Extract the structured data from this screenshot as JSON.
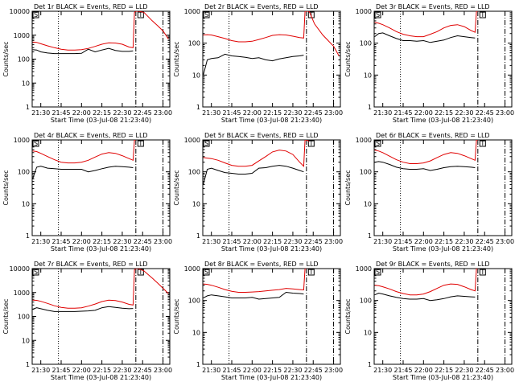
{
  "colors": {
    "events": "#000000",
    "lld": "#e00000",
    "axes": "#000000",
    "background": "#ffffff"
  },
  "common": {
    "ylabel": "Counts/sec",
    "xlabel": "Start Time (03-Jul-08 21:23:40)",
    "xticklabels": [
      "21:30",
      "21:45",
      "22:00",
      "22:15",
      "22:30",
      "22:45",
      "23:00"
    ],
    "yscale": "log",
    "time_range": [
      "21:23:40",
      "23:05:00"
    ],
    "dotted_marker": "21:43",
    "dashdot_markers": [
      "22:40",
      "23:00"
    ],
    "box_markers": [
      "S",
      "T"
    ]
  },
  "chart_data": [
    {
      "type": "line",
      "title": "Det 1r BLACK = Events, RED = LLD",
      "ylim": [
        1,
        10000
      ],
      "yticklabels": [
        "1",
        "10",
        "100",
        "1000",
        "10000"
      ],
      "x": [
        "21:24",
        "21:27",
        "21:30",
        "21:35",
        "21:40",
        "21:45",
        "21:50",
        "21:55",
        "22:00",
        "22:05",
        "22:10",
        "22:15",
        "22:20",
        "22:25",
        "22:30",
        "22:35",
        "22:38",
        "22:39",
        "22:40",
        "22:42",
        "22:46",
        "22:52",
        "22:56",
        "23:00",
        "23:04"
      ],
      "series": [
        {
          "name": "BLACK = Events",
          "values": [
            250,
            240,
            200,
            180,
            170,
            170,
            170,
            170,
            175,
            260,
            200,
            240,
            280,
            230,
            210,
            210,
            220,
            null,
            null,
            null,
            null,
            null,
            null,
            null,
            null
          ]
        },
        {
          "name": "RED = LLD",
          "values": [
            520,
            500,
            440,
            360,
            300,
            260,
            240,
            240,
            250,
            280,
            340,
            420,
            480,
            470,
            420,
            320,
            300,
            9000,
            10000,
            12000,
            9000,
            4000,
            2500,
            1500,
            700
          ]
        }
      ]
    },
    {
      "type": "line",
      "title": "Det 2r BLACK = Events, RED = LLD",
      "ylim": [
        1,
        1000
      ],
      "yticklabels": [
        "1",
        "10",
        "100",
        "1000"
      ],
      "x": [
        "21:24",
        "21:27",
        "21:30",
        "21:35",
        "21:40",
        "21:45",
        "21:50",
        "21:55",
        "22:00",
        "22:05",
        "22:10",
        "22:15",
        "22:20",
        "22:25",
        "22:30",
        "22:35",
        "22:38",
        "22:39",
        "22:40",
        "22:42",
        "22:46",
        "22:52",
        "22:56",
        "23:00",
        "23:04"
      ],
      "series": [
        {
          "name": "BLACK = Events",
          "values": [
            10,
            30,
            33,
            35,
            45,
            40,
            38,
            36,
            33,
            35,
            30,
            28,
            32,
            35,
            38,
            40,
            42,
            null,
            null,
            null,
            null,
            null,
            null,
            null,
            null
          ]
        },
        {
          "name": "RED = LLD",
          "values": [
            180,
            185,
            180,
            160,
            140,
            120,
            110,
            110,
            115,
            130,
            150,
            175,
            185,
            180,
            165,
            150,
            145,
            1000,
            1200,
            1000,
            400,
            180,
            120,
            80,
            40
          ]
        }
      ]
    },
    {
      "type": "line",
      "title": "Det 3r BLACK = Events, RED = LLD",
      "ylim": [
        1,
        1000
      ],
      "yticklabels": [
        "1",
        "10",
        "100",
        "1000"
      ],
      "x": [
        "21:24",
        "21:27",
        "21:30",
        "21:35",
        "21:40",
        "21:45",
        "21:50",
        "21:55",
        "22:00",
        "22:05",
        "22:10",
        "22:15",
        "22:20",
        "22:25",
        "22:30",
        "22:35",
        "22:38",
        "22:39",
        "22:40",
        "22:42",
        "22:46",
        "22:52",
        "22:56",
        "23:00",
        "23:04"
      ],
      "series": [
        {
          "name": "BLACK = Events",
          "values": [
            160,
            200,
            210,
            170,
            140,
            120,
            120,
            115,
            120,
            105,
            115,
            125,
            150,
            170,
            160,
            150,
            145,
            null,
            null,
            null,
            null,
            null,
            null,
            null,
            null
          ]
        },
        {
          "name": "RED = LLD",
          "values": [
            450,
            420,
            380,
            300,
            230,
            190,
            170,
            160,
            160,
            190,
            230,
            300,
            360,
            380,
            330,
            250,
            220,
            1000,
            1200,
            null,
            null,
            null,
            null,
            null,
            null
          ]
        }
      ]
    },
    {
      "type": "line",
      "title": "Det 4r BLACK = Events, RED = LLD",
      "ylim": [
        1,
        1000
      ],
      "yticklabels": [
        "1",
        "10",
        "100",
        "1000"
      ],
      "x": [
        "21:24",
        "21:27",
        "21:30",
        "21:35",
        "21:40",
        "21:45",
        "21:50",
        "21:55",
        "22:00",
        "22:05",
        "22:10",
        "22:15",
        "22:20",
        "22:25",
        "22:30",
        "22:35",
        "22:38",
        "22:39",
        "22:40",
        "22:42",
        "22:46",
        "22:52",
        "22:56",
        "23:00",
        "23:04"
      ],
      "series": [
        {
          "name": "BLACK = Events",
          "values": [
            60,
            140,
            150,
            130,
            125,
            120,
            120,
            120,
            120,
            100,
            110,
            125,
            140,
            150,
            145,
            140,
            135,
            null,
            null,
            null,
            null,
            null,
            null,
            null,
            null
          ]
        },
        {
          "name": "RED = LLD",
          "values": [
            450,
            430,
            380,
            300,
            240,
            200,
            190,
            190,
            200,
            230,
            290,
            360,
            400,
            380,
            320,
            260,
            230,
            1000,
            1200,
            null,
            null,
            null,
            null,
            null,
            null
          ]
        }
      ]
    },
    {
      "type": "line",
      "title": "Det 5r BLACK = Events, RED = LLD",
      "ylim": [
        1,
        1000
      ],
      "yticklabels": [
        "1",
        "10",
        "100",
        "1000"
      ],
      "x": [
        "21:24",
        "21:27",
        "21:30",
        "21:35",
        "21:40",
        "21:45",
        "21:50",
        "21:55",
        "22:00",
        "22:05",
        "22:10",
        "22:15",
        "22:20",
        "22:25",
        "22:30",
        "22:35",
        "22:38",
        "22:39",
        "22:40",
        "22:42",
        "22:46",
        "22:52",
        "22:56",
        "23:00",
        "23:04"
      ],
      "series": [
        {
          "name": "BLACK = Events",
          "values": [
            40,
            120,
            130,
            110,
            95,
            90,
            85,
            85,
            90,
            130,
            135,
            150,
            160,
            150,
            130,
            110,
            100,
            null,
            null,
            null,
            null,
            null,
            null,
            null,
            null
          ]
        },
        {
          "name": "RED = LLD",
          "values": [
            280,
            270,
            260,
            230,
            190,
            160,
            150,
            150,
            160,
            220,
            300,
            420,
            480,
            450,
            350,
            200,
            150,
            1000,
            1100,
            900,
            null,
            null,
            null,
            null,
            null
          ]
        }
      ]
    },
    {
      "type": "line",
      "title": "Det 6r BLACK = Events, RED = LLD",
      "ylim": [
        1,
        1000
      ],
      "yticklabels": [
        "1",
        "10",
        "100",
        "1000"
      ],
      "x": [
        "21:24",
        "21:27",
        "21:30",
        "21:35",
        "21:40",
        "21:45",
        "21:50",
        "21:55",
        "22:00",
        "22:05",
        "22:10",
        "22:15",
        "22:20",
        "22:25",
        "22:30",
        "22:35",
        "22:38",
        "22:39",
        "22:40",
        "22:42",
        "22:46",
        "22:52",
        "22:56",
        "23:00",
        "23:04"
      ],
      "series": [
        {
          "name": "BLACK = Events",
          "values": [
            200,
            210,
            200,
            170,
            140,
            125,
            120,
            120,
            125,
            110,
            120,
            135,
            145,
            150,
            145,
            140,
            135,
            null,
            null,
            null,
            null,
            null,
            null,
            null,
            null
          ]
        },
        {
          "name": "RED = LLD",
          "values": [
            480,
            450,
            400,
            310,
            240,
            200,
            180,
            180,
            190,
            220,
            280,
            350,
            400,
            380,
            320,
            260,
            230,
            1000,
            1200,
            null,
            null,
            null,
            null,
            null,
            null
          ]
        }
      ]
    },
    {
      "type": "line",
      "title": "Det 7r BLACK = Events, RED = LLD",
      "ylim": [
        1,
        10000
      ],
      "yticklabels": [
        "1",
        "10",
        "100",
        "1000",
        "10000"
      ],
      "x": [
        "21:24",
        "21:27",
        "21:30",
        "21:35",
        "21:40",
        "21:45",
        "21:50",
        "21:55",
        "22:00",
        "22:05",
        "22:10",
        "22:15",
        "22:20",
        "22:25",
        "22:30",
        "22:35",
        "22:38",
        "22:39",
        "22:40",
        "22:42",
        "22:46",
        "22:52",
        "22:56",
        "23:00",
        "23:04"
      ],
      "series": [
        {
          "name": "BLACK = Events",
          "values": [
            200,
            230,
            210,
            180,
            160,
            160,
            160,
            160,
            165,
            170,
            180,
            230,
            260,
            240,
            220,
            210,
            215,
            null,
            null,
            null,
            null,
            null,
            null,
            null,
            null
          ]
        },
        {
          "name": "RED = LLD",
          "values": [
            480,
            470,
            430,
            350,
            280,
            240,
            220,
            220,
            230,
            270,
            330,
            420,
            480,
            460,
            400,
            320,
            300,
            9000,
            11000,
            12000,
            8000,
            4000,
            2500,
            1500,
            900
          ]
        }
      ]
    },
    {
      "type": "line",
      "title": "Det 8r BLACK = Events, RED = LLD",
      "ylim": [
        1,
        1000
      ],
      "yticklabels": [
        "1",
        "10",
        "100",
        "1000"
      ],
      "x": [
        "21:24",
        "21:27",
        "21:30",
        "21:35",
        "21:40",
        "21:45",
        "21:50",
        "21:55",
        "22:00",
        "22:05",
        "22:10",
        "22:15",
        "22:20",
        "22:25",
        "22:30",
        "22:35",
        "22:38",
        "22:39",
        "22:40",
        "22:42",
        "22:46",
        "22:52",
        "22:56",
        "23:00",
        "23:04"
      ],
      "series": [
        {
          "name": "BLACK = Events",
          "values": [
            120,
            140,
            150,
            140,
            130,
            120,
            120,
            120,
            125,
            110,
            115,
            120,
            125,
            180,
            170,
            165,
            160,
            null,
            null,
            null,
            null,
            null,
            null,
            null,
            null
          ]
        },
        {
          "name": "RED = LLD",
          "values": [
            330,
            320,
            300,
            260,
            220,
            195,
            180,
            180,
            185,
            190,
            200,
            210,
            220,
            240,
            230,
            220,
            215,
            1000,
            1100,
            null,
            null,
            null,
            null,
            null,
            null
          ]
        }
      ]
    },
    {
      "type": "line",
      "title": "Det 9r BLACK = Events, RED = LLD",
      "ylim": [
        1,
        1000
      ],
      "yticklabels": [
        "1",
        "10",
        "100",
        "1000"
      ],
      "x": [
        "21:24",
        "21:27",
        "21:30",
        "21:35",
        "21:40",
        "21:45",
        "21:50",
        "21:55",
        "22:00",
        "22:05",
        "22:10",
        "22:15",
        "22:20",
        "22:25",
        "22:30",
        "22:35",
        "22:38",
        "22:39",
        "22:40",
        "22:42",
        "22:46",
        "22:52",
        "22:56",
        "23:00",
        "23:04"
      ],
      "series": [
        {
          "name": "BLACK = Events",
          "values": [
            150,
            170,
            160,
            140,
            125,
            115,
            110,
            110,
            115,
            100,
            105,
            115,
            130,
            140,
            135,
            130,
            128,
            null,
            null,
            null,
            null,
            null,
            null,
            null,
            null
          ]
        },
        {
          "name": "RED = LLD",
          "values": [
            300,
            290,
            270,
            230,
            190,
            165,
            150,
            150,
            160,
            190,
            240,
            300,
            330,
            320,
            270,
            220,
            200,
            1000,
            1100,
            null,
            null,
            null,
            null,
            null,
            null
          ]
        }
      ]
    }
  ]
}
